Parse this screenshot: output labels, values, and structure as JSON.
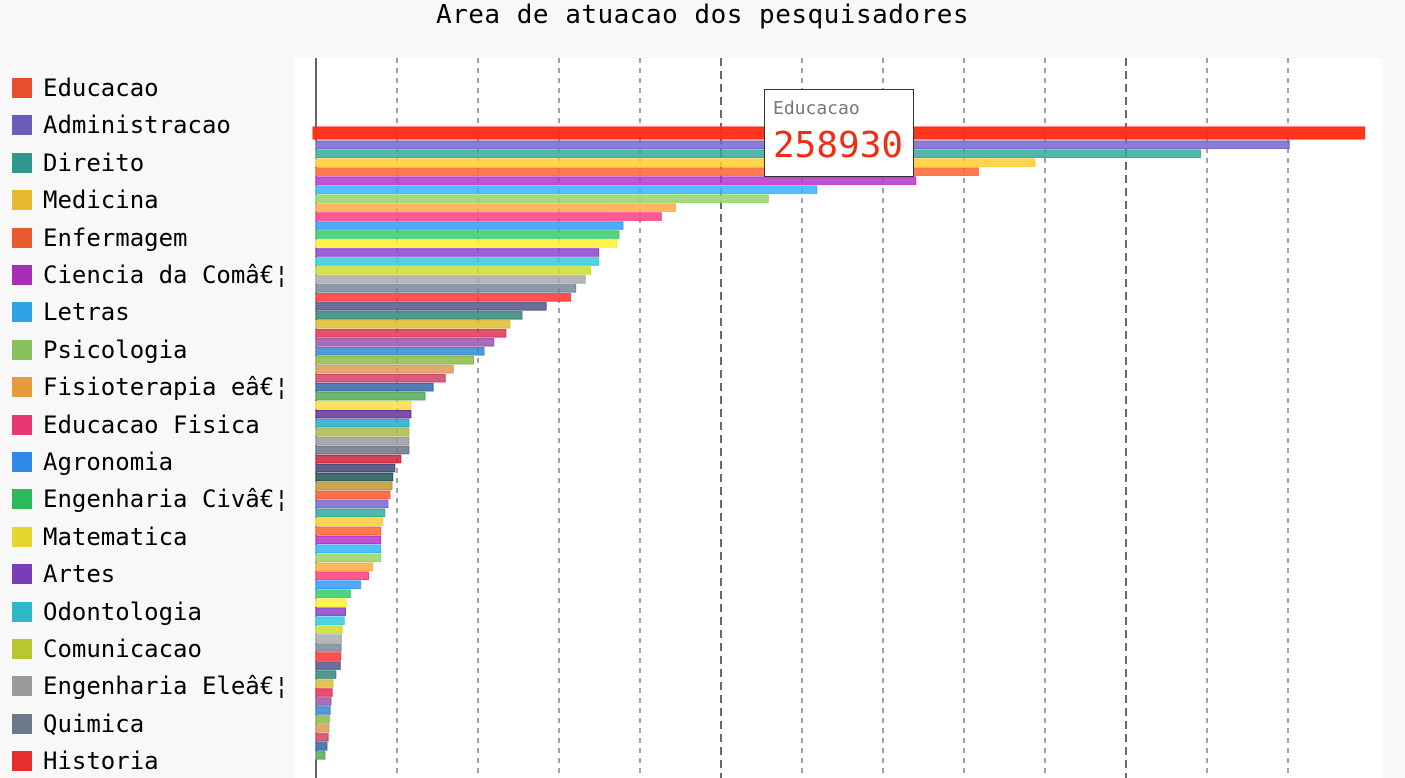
{
  "chart_data": {
    "type": "bar",
    "orientation": "horizontal",
    "title": "Area de atuacao dos pesquisadores",
    "legend_position": "left",
    "grid": true,
    "xlim": [
      0,
      260000
    ],
    "categories": [
      "Educacao",
      "Administracao",
      "Direito",
      "Medicina",
      "Enfermagem",
      "Ciencia da Comâ€¦",
      "Letras",
      "Psicologia",
      "Fisioterapia eâ€¦",
      "Educacao Fisica",
      "Agronomia",
      "Engenharia Civâ€¦",
      "Matematica",
      "Artes",
      "Odontologia",
      "Comunicacao",
      "Engenharia Eleâ€¦",
      "Quimica",
      "Historia"
    ],
    "values": [
      258930,
      241000,
      219000,
      178000,
      164000,
      148500,
      124000,
      112000,
      89000,
      85500,
      76000,
      75000,
      74500,
      70000,
      70000,
      68000,
      66700,
      64300,
      63000
    ],
    "extra_values": [
      57000,
      51000,
      48000,
      47000,
      44000,
      41600,
      39000,
      34000,
      32000,
      29000,
      27000,
      23500,
      23500,
      23000,
      23000,
      23000,
      23000,
      21000,
      19500,
      19000,
      18800,
      18300,
      17800,
      17000,
      16500,
      16000,
      16000,
      16000,
      16000,
      14000,
      13000,
      11000,
      8500,
      7500,
      7300,
      7000,
      6500,
      6300,
      6200,
      6100,
      6000,
      4900,
      4200,
      4000,
      3700,
      3500,
      3300,
      3200,
      3000,
      2700,
      2200
    ],
    "tooltip": {
      "label": "Educacao",
      "value": "258930"
    },
    "colors": [
      "#ff5733",
      "#7766cc",
      "#33aa99",
      "#ffcc33",
      "#ff6633",
      "#bb33cc",
      "#33b5ff",
      "#99d566",
      "#ffaa44",
      "#ff3d7f",
      "#3399ff",
      "#33cc66",
      "#ffee33",
      "#8844cc",
      "#33ccdd",
      "#ccdd33",
      "#aaaaaa",
      "#778899",
      "#ff3333",
      "#555588",
      "#338877",
      "#ddbb33",
      "#dd3355",
      "#9955aa",
      "#3388cc",
      "#88bb44",
      "#dd9955",
      "#cc4466",
      "#3366aa",
      "#55aa55",
      "#ffdd44",
      "#663399",
      "#22aacc",
      "#aabb44",
      "#999999",
      "#667788",
      "#cc2233",
      "#444477",
      "#225555",
      "#bb9933"
    ]
  },
  "legend": [
    {
      "label": "Educacao",
      "color": "#ff5733"
    },
    {
      "label": "Administracao",
      "color": "#7766cc"
    },
    {
      "label": "Direito",
      "color": "#33aa99"
    },
    {
      "label": "Medicina",
      "color": "#ffcc33"
    },
    {
      "label": "Enfermagem",
      "color": "#ff6633"
    },
    {
      "label": "Ciencia da Comâ€¦",
      "color": "#bb33cc"
    },
    {
      "label": "Letras",
      "color": "#33b5ff"
    },
    {
      "label": "Psicologia",
      "color": "#99d566"
    },
    {
      "label": "Fisioterapia eâ€¦",
      "color": "#ffaa44"
    },
    {
      "label": "Educacao Fisica",
      "color": "#ff3d7f"
    },
    {
      "label": "Agronomia",
      "color": "#3399ff"
    },
    {
      "label": "Engenharia Civâ€¦",
      "color": "#33cc66"
    },
    {
      "label": "Matematica",
      "color": "#ffee33"
    },
    {
      "label": "Artes",
      "color": "#8844cc"
    },
    {
      "label": "Odontologia",
      "color": "#33ccdd"
    },
    {
      "label": "Comunicacao",
      "color": "#ccdd33"
    },
    {
      "label": "Engenharia Eleâ€¦",
      "color": "#aaaaaa"
    },
    {
      "label": "Quimica",
      "color": "#778899"
    },
    {
      "label": "Historia",
      "color": "#ff3333"
    }
  ]
}
